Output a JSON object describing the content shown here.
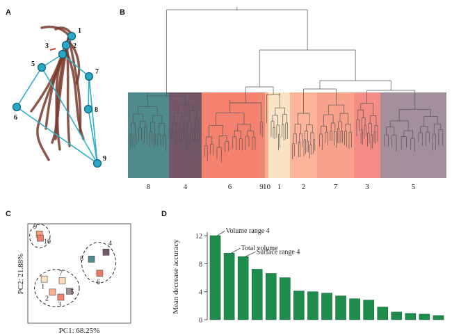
{
  "panels": {
    "a": "A",
    "b": "B",
    "c": "C",
    "d": "D"
  },
  "root_nodes": [
    "1",
    "2",
    "3",
    "4",
    "5",
    "6",
    "7",
    "8",
    "9"
  ],
  "colors": {
    "node_fill": "#2aa6c6",
    "edge": "#2ab0c8",
    "root": "#7a3a2c",
    "bar": "#1e8c4a",
    "dendro_line": "#555555"
  },
  "dendrogram": {
    "clusters": [
      {
        "label": "8",
        "color": "#4f8b8c"
      },
      {
        "label": "4",
        "color": "#735868"
      },
      {
        "label": "6",
        "color": "#f5826f"
      },
      {
        "label": "9",
        "color": "#ef8872"
      },
      {
        "label": "10",
        "color": "#f9b08e"
      },
      {
        "label": "1",
        "color": "#fbe3c6"
      },
      {
        "label": "2",
        "color": "#fcb49a"
      },
      {
        "label": "7",
        "color": "#f9a28b"
      },
      {
        "label": "3",
        "color": "#f58d86"
      },
      {
        "label": "5",
        "color": "#a3909a"
      }
    ]
  },
  "pca": {
    "xlabel": "PC1: 68.25%",
    "ylabel": "PC2: 21.88%",
    "points": [
      {
        "label": "9",
        "color": "#f9a07e",
        "pc1": -0.82,
        "pc2": 0.78
      },
      {
        "label": "10",
        "color": "#f08068",
        "pc1": -0.8,
        "pc2": 0.7
      },
      {
        "label": "8",
        "color": "#4f8b8c",
        "pc1": 0.25,
        "pc2": 0.28
      },
      {
        "label": "4",
        "color": "#735868",
        "pc1": 0.55,
        "pc2": 0.42
      },
      {
        "label": "6",
        "color": "#ef7a62",
        "pc1": 0.42,
        "pc2": 0.0
      },
      {
        "label": "7",
        "color": "#fbd9b8",
        "pc1": -0.35,
        "pc2": -0.15
      },
      {
        "label": "1",
        "color": "#fbe3c6",
        "pc1": -0.72,
        "pc2": -0.12
      },
      {
        "label": "2",
        "color": "#f9b08e",
        "pc1": -0.55,
        "pc2": -0.38
      },
      {
        "label": "3",
        "color": "#f5826f",
        "pc1": -0.38,
        "pc2": -0.48
      },
      {
        "label": "5",
        "color": "#a3909a",
        "pc1": -0.2,
        "pc2": -0.36
      }
    ],
    "groups": [
      {
        "labels": [
          "9",
          "10"
        ]
      },
      {
        "labels": [
          "8",
          "4",
          "6"
        ]
      },
      {
        "labels": [
          "1",
          "7",
          "2",
          "3",
          "5"
        ]
      }
    ]
  },
  "chart_data": {
    "type": "bar",
    "title": "",
    "xlabel": "",
    "ylabel": "Mean decrease accuracy",
    "ylim": [
      0,
      12.5
    ],
    "yticks": [
      0,
      4,
      8,
      12
    ],
    "values": [
      12.0,
      9.5,
      9.0,
      7.2,
      6.6,
      6.0,
      4.1,
      4.0,
      3.8,
      3.4,
      3.0,
      2.8,
      1.8,
      1.1,
      0.9,
      0.8,
      0.6
    ],
    "annotations": [
      {
        "bar_index": 0,
        "text": "Volume range 4"
      },
      {
        "bar_index": 1,
        "text": "Total volume"
      },
      {
        "bar_index": 2,
        "text": "Surface range 4"
      }
    ]
  }
}
